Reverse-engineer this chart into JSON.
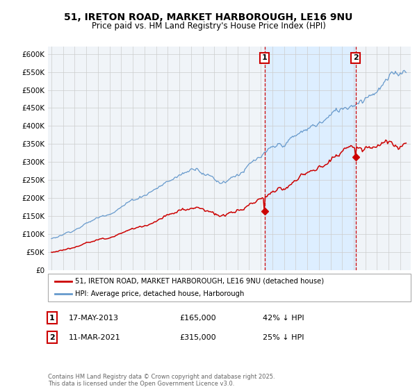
{
  "title": "51, IRETON ROAD, MARKET HARBOROUGH, LE16 9NU",
  "subtitle": "Price paid vs. HM Land Registry's House Price Index (HPI)",
  "red_label": "51, IRETON ROAD, MARKET HARBOROUGH, LE16 9NU (detached house)",
  "blue_label": "HPI: Average price, detached house, Harborough",
  "transaction1_date": "17-MAY-2013",
  "transaction1_price": "£165,000",
  "transaction1_note": "42% ↓ HPI",
  "transaction2_date": "11-MAR-2021",
  "transaction2_price": "£315,000",
  "transaction2_note": "25% ↓ HPI",
  "footer": "Contains HM Land Registry data © Crown copyright and database right 2025.\nThis data is licensed under the Open Government Licence v3.0.",
  "red_color": "#cc0000",
  "blue_color": "#6699cc",
  "shade_color": "#ddeeff",
  "vline_color": "#cc0000",
  "background_color": "#ffffff",
  "plot_bg_color": "#f0f4f8",
  "grid_color": "#cccccc",
  "ylim": [
    0,
    620000
  ],
  "yticks": [
    0,
    50000,
    100000,
    150000,
    200000,
    250000,
    300000,
    350000,
    400000,
    450000,
    500000,
    550000,
    600000
  ]
}
